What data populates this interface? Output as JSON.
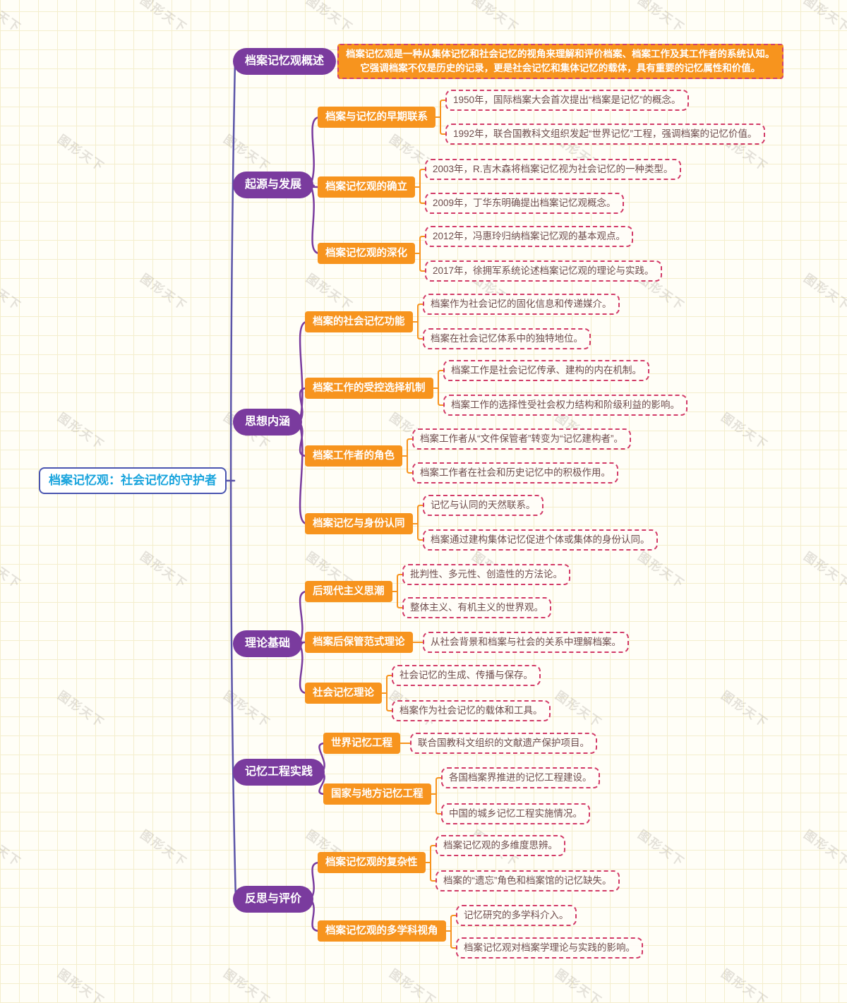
{
  "app": {
    "watermark": "图形天下"
  },
  "colors": {
    "branch_fill": "#7a3b9e",
    "topic_fill": "#f7941e",
    "leaf_border": "#d23a67",
    "leaf_text": "#6e4c4c",
    "root_text": "#19a4dd",
    "root_border": "#4a55b0",
    "trunk": "#5b54a8",
    "branch_wire": "#7a3b9e",
    "topic_wire": "#f7941e",
    "summary_bracket": "#5b4a9b"
  },
  "mindmap": {
    "root": {
      "label": "档案记忆观：社会记忆的守护者"
    },
    "branches": [
      {
        "label": "档案记忆观概述",
        "summary": [
          "档案记忆观是一种从集体记忆和社会记忆的视角来理解和评价档案、档案工作及其工作者的系统认知。",
          "它强调档案不仅是历史的记录，更是社会记忆和集体记忆的载体，具有重要的记忆属性和价值。"
        ],
        "children": []
      },
      {
        "label": "起源与发展",
        "children": [
          {
            "label": "档案与记忆的早期联系",
            "leaves": [
              "1950年，国际档案大会首次提出“档案是记忆”的概念。",
              "1992年，联合国教科文组织发起“世界记忆”工程，强调档案的记忆价值。"
            ]
          },
          {
            "label": "档案记忆观的确立",
            "leaves": [
              "2003年，R.吉木森将档案记忆视为社会记忆的一种类型。",
              "2009年，丁华东明确提出档案记忆观概念。"
            ]
          },
          {
            "label": "档案记忆观的深化",
            "leaves": [
              "2012年，冯惠玲归纳档案记忆观的基本观点。",
              "2017年，徐拥军系统论述档案记忆观的理论与实践。"
            ]
          }
        ]
      },
      {
        "label": "思想内涵",
        "children": [
          {
            "label": "档案的社会记忆功能",
            "leaves": [
              "档案作为社会记忆的固化信息和传递媒介。",
              "档案在社会记忆体系中的独特地位。"
            ]
          },
          {
            "label": "档案工作的受控选择机制",
            "leaves": [
              "档案工作是社会记忆传承、建构的内在机制。",
              "档案工作的选择性受社会权力结构和阶级利益的影响。"
            ]
          },
          {
            "label": "档案工作者的角色",
            "leaves": [
              "档案工作者从“文件保管者”转变为“记忆建构者”。",
              "档案工作者在社会和历史记忆中的积极作用。"
            ]
          },
          {
            "label": "档案记忆与身份认同",
            "leaves": [
              "记忆与认同的天然联系。",
              "档案通过建构集体记忆促进个体或集体的身份认同。"
            ]
          }
        ]
      },
      {
        "label": "理论基础",
        "children": [
          {
            "label": "后现代主义思潮",
            "leaves": [
              "批判性、多元性、创造性的方法论。",
              "整体主义、有机主义的世界观。"
            ]
          },
          {
            "label": "档案后保管范式理论",
            "leaves": [
              "从社会背景和档案与社会的关系中理解档案。"
            ]
          },
          {
            "label": "社会记忆理论",
            "leaves": [
              "社会记忆的生成、传播与保存。",
              "档案作为社会记忆的载体和工具。"
            ]
          }
        ]
      },
      {
        "label": "记忆工程实践",
        "children": [
          {
            "label": "世界记忆工程",
            "leaves": [
              "联合国教科文组织的文献遗产保护项目。"
            ]
          },
          {
            "label": "国家与地方记忆工程",
            "leaves": [
              "各国档案界推进的记忆工程建设。",
              "中国的城乡记忆工程实施情况。"
            ]
          }
        ]
      },
      {
        "label": "反思与评价",
        "children": [
          {
            "label": "档案记忆观的复杂性",
            "leaves": [
              "档案记忆观的多维度思辨。",
              "档案的“遗忘”角色和档案馆的记忆缺失。"
            ]
          },
          {
            "label": "档案记忆观的多学科视角",
            "leaves": [
              "记忆研究的多学科介入。",
              "档案记忆观对档案学理论与实践的影响。"
            ]
          }
        ]
      }
    ]
  }
}
